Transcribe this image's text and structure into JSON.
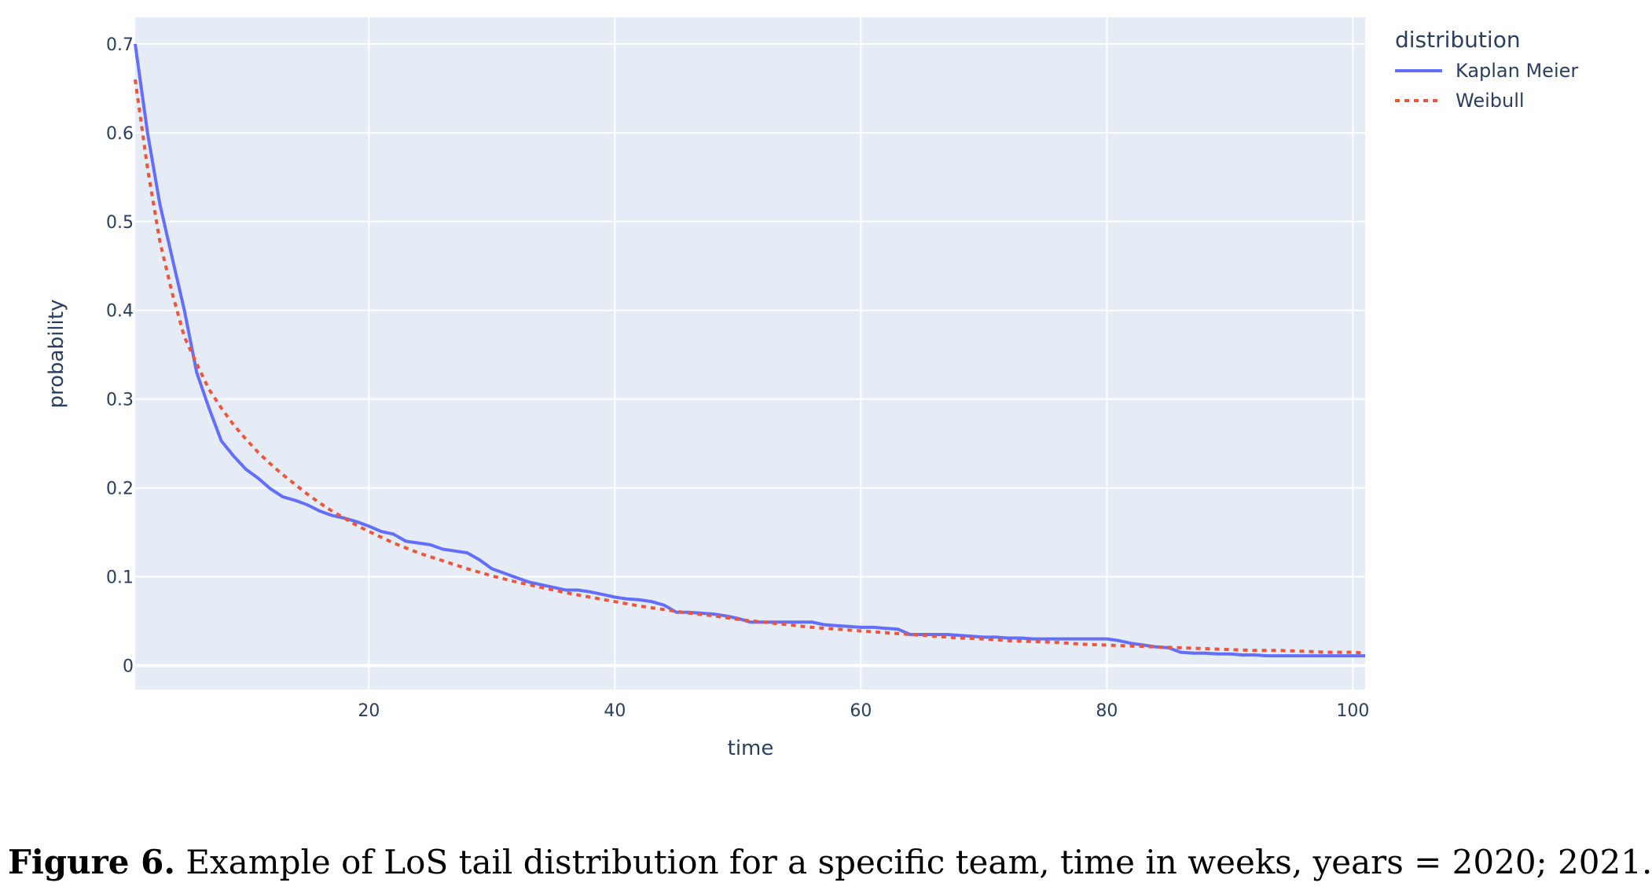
{
  "chart_data": {
    "type": "line",
    "xlabel": "time",
    "ylabel": "probability",
    "xlim": [
      1,
      101
    ],
    "ylim": [
      -0.027,
      0.73
    ],
    "x_ticks": [
      20,
      40,
      60,
      80,
      100
    ],
    "y_ticks": [
      0,
      0.1,
      0.2,
      0.3,
      0.4,
      0.5,
      0.6,
      0.7
    ],
    "x_tick_labels": [
      "20",
      "40",
      "60",
      "80",
      "100"
    ],
    "y_tick_labels": [
      "0",
      "0.1",
      "0.2",
      "0.3",
      "0.4",
      "0.5",
      "0.6",
      "0.7"
    ],
    "grid": true,
    "legend": {
      "title": "distribution",
      "placement": "top-right outside"
    },
    "series": [
      {
        "name": "Kaplan Meier",
        "color": "#636efa",
        "dash": "solid",
        "x": [
          1,
          2,
          3,
          4,
          5,
          6,
          7,
          8,
          9,
          10,
          11,
          12,
          13,
          14,
          15,
          16,
          17,
          18,
          19,
          20,
          21,
          22,
          23,
          24,
          25,
          26,
          27,
          28,
          29,
          30,
          31,
          32,
          33,
          34,
          35,
          36,
          37,
          38,
          39,
          40,
          41,
          42,
          43,
          44,
          45,
          46,
          47,
          48,
          49,
          50,
          51,
          52,
          53,
          54,
          55,
          56,
          57,
          58,
          59,
          60,
          61,
          62,
          63,
          64,
          65,
          66,
          67,
          68,
          69,
          70,
          71,
          72,
          73,
          74,
          75,
          76,
          77,
          78,
          79,
          80,
          81,
          82,
          83,
          84,
          85,
          86,
          87,
          88,
          89,
          90,
          91,
          92,
          93,
          94,
          95,
          96,
          97,
          98,
          99,
          100,
          101
        ],
        "y": [
          0.7,
          0.6,
          0.52,
          0.46,
          0.4,
          0.33,
          0.29,
          0.253,
          0.236,
          0.221,
          0.211,
          0.199,
          0.19,
          0.186,
          0.181,
          0.174,
          0.169,
          0.166,
          0.162,
          0.157,
          0.151,
          0.148,
          0.14,
          0.138,
          0.136,
          0.131,
          0.129,
          0.127,
          0.119,
          0.109,
          0.104,
          0.099,
          0.094,
          0.091,
          0.088,
          0.085,
          0.085,
          0.083,
          0.08,
          0.077,
          0.075,
          0.074,
          0.072,
          0.068,
          0.06,
          0.06,
          0.059,
          0.058,
          0.056,
          0.053,
          0.049,
          0.049,
          0.049,
          0.049,
          0.049,
          0.049,
          0.046,
          0.045,
          0.044,
          0.043,
          0.043,
          0.042,
          0.041,
          0.035,
          0.035,
          0.035,
          0.035,
          0.034,
          0.033,
          0.032,
          0.032,
          0.031,
          0.031,
          0.03,
          0.03,
          0.03,
          0.03,
          0.03,
          0.03,
          0.03,
          0.028,
          0.025,
          0.023,
          0.021,
          0.02,
          0.015,
          0.014,
          0.014,
          0.013,
          0.013,
          0.012,
          0.012,
          0.011,
          0.011,
          0.011,
          0.011,
          0.011,
          0.011,
          0.011,
          0.011,
          0.011
        ]
      },
      {
        "name": "Weibull",
        "color": "#ef553b",
        "dash": "dot",
        "x": [
          1,
          2,
          3,
          4,
          5,
          6,
          7,
          8,
          9,
          10,
          11,
          12,
          13,
          14,
          15,
          16,
          17,
          18,
          19,
          20,
          22,
          24,
          26,
          28,
          30,
          32,
          34,
          36,
          38,
          40,
          42,
          44,
          46,
          48,
          50,
          52,
          54,
          56,
          58,
          60,
          62,
          64,
          66,
          68,
          70,
          72,
          74,
          76,
          78,
          80,
          82,
          84,
          86,
          88,
          90,
          92,
          94,
          96,
          98,
          100,
          101
        ],
        "y": [
          0.66,
          0.56,
          0.478,
          0.42,
          0.37,
          0.34,
          0.311,
          0.29,
          0.271,
          0.255,
          0.24,
          0.227,
          0.215,
          0.204,
          0.193,
          0.183,
          0.174,
          0.166,
          0.158,
          0.151,
          0.138,
          0.127,
          0.118,
          0.109,
          0.101,
          0.094,
          0.088,
          0.082,
          0.077,
          0.072,
          0.067,
          0.063,
          0.059,
          0.056,
          0.052,
          0.049,
          0.046,
          0.043,
          0.041,
          0.039,
          0.037,
          0.035,
          0.033,
          0.031,
          0.03,
          0.028,
          0.027,
          0.026,
          0.024,
          0.023,
          0.022,
          0.021,
          0.02,
          0.019,
          0.018,
          0.017,
          0.017,
          0.016,
          0.015,
          0.015,
          0.014
        ]
      }
    ]
  },
  "caption": {
    "label": "Figure 6.",
    "text": " Example of LoS tail distribution for a specific team, time in weeks, years = 2020; 2021."
  }
}
